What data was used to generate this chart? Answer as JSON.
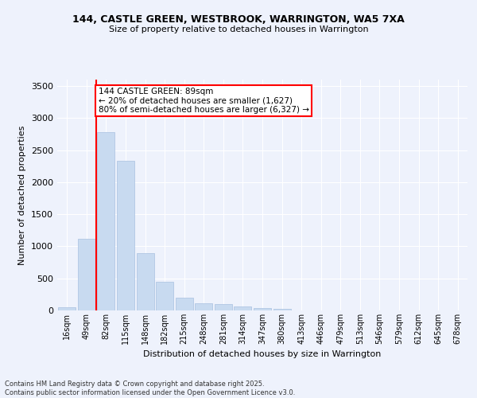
{
  "title1": "144, CASTLE GREEN, WESTBROOK, WARRINGTON, WA5 7XA",
  "title2": "Size of property relative to detached houses in Warrington",
  "xlabel": "Distribution of detached houses by size in Warrington",
  "ylabel": "Number of detached properties",
  "bar_color": "#c8daf0",
  "bar_edge_color": "#a8c0e0",
  "categories": [
    "16sqm",
    "49sqm",
    "82sqm",
    "115sqm",
    "148sqm",
    "182sqm",
    "215sqm",
    "248sqm",
    "281sqm",
    "314sqm",
    "347sqm",
    "380sqm",
    "413sqm",
    "446sqm",
    "479sqm",
    "513sqm",
    "546sqm",
    "579sqm",
    "612sqm",
    "645sqm",
    "678sqm"
  ],
  "values": [
    55,
    1120,
    2775,
    2340,
    895,
    445,
    195,
    115,
    95,
    65,
    35,
    20,
    5,
    2,
    1,
    0,
    0,
    0,
    0,
    0,
    0
  ],
  "ylim": [
    0,
    3600
  ],
  "yticks": [
    0,
    500,
    1000,
    1500,
    2000,
    2500,
    3000,
    3500
  ],
  "vline_x_index": 2,
  "annotation_line1": "144 CASTLE GREEN: 89sqm",
  "annotation_line2": "← 20% of detached houses are smaller (1,627)",
  "annotation_line3": "80% of semi-detached houses are larger (6,327) →",
  "annotation_box_color": "white",
  "annotation_box_edgecolor": "red",
  "vline_color": "red",
  "background_color": "#eef2fc",
  "grid_color": "white",
  "footer1": "Contains HM Land Registry data © Crown copyright and database right 2025.",
  "footer2": "Contains public sector information licensed under the Open Government Licence v3.0."
}
